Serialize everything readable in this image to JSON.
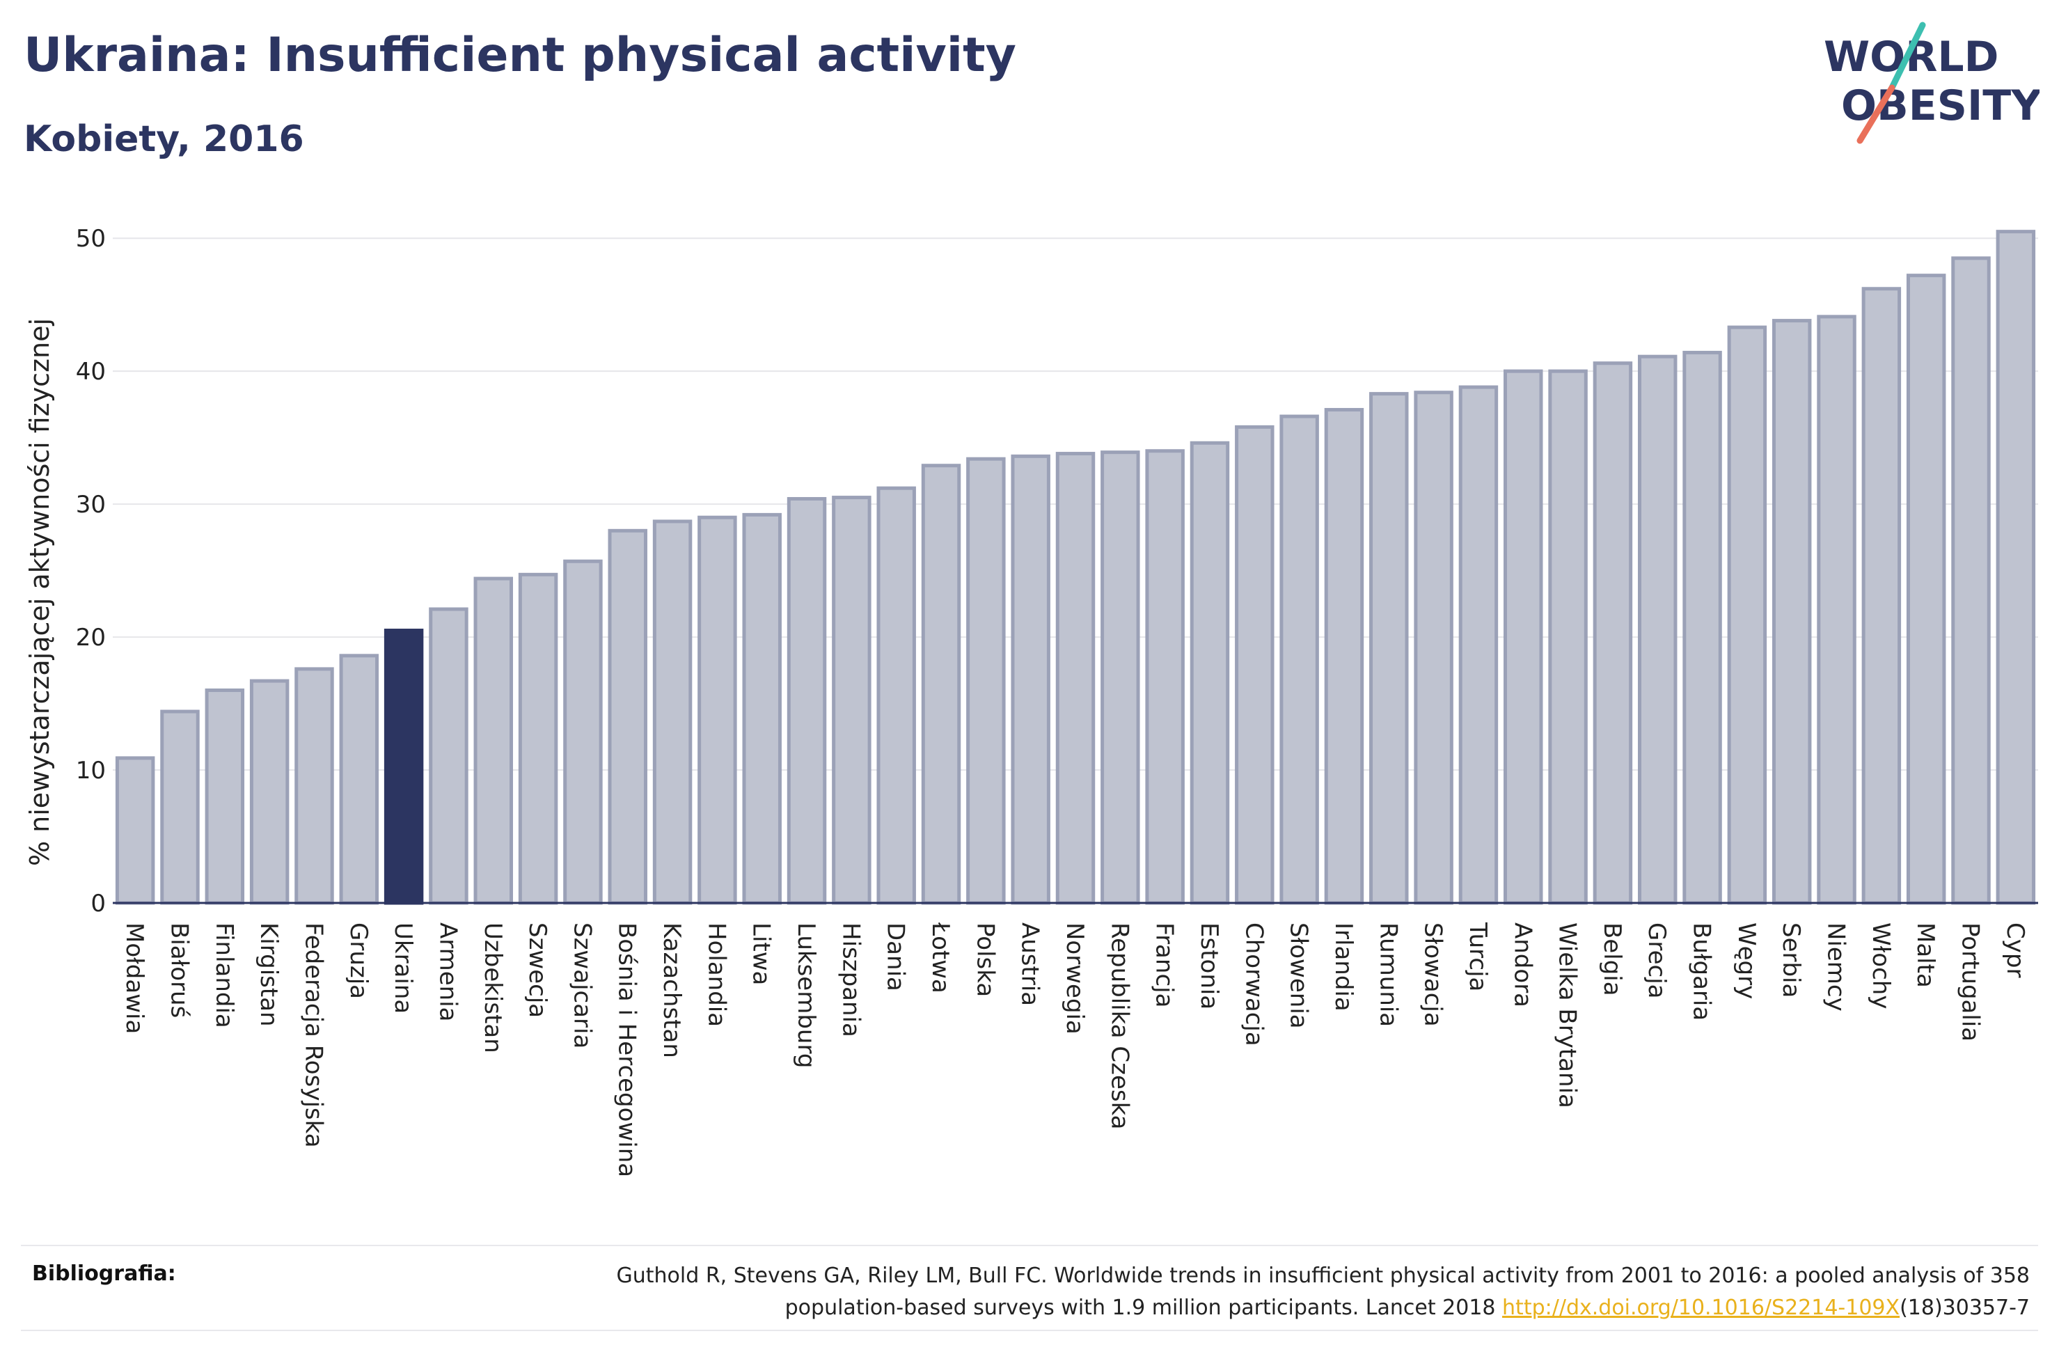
{
  "header": {
    "title": "Ukraina: Insufficient physical activity",
    "subtitle": "Kobiety, 2016",
    "logo_line1": "WORLD",
    "logo_line2": "OBESITY"
  },
  "colors": {
    "bar": "#bfc3d0",
    "bar_stroke": "#9ba1b7",
    "highlight": "#2c3561",
    "text": "#2c3561",
    "grid": "#e6e6ea",
    "link": "#e9b11c",
    "logo_slash_top": "#3dbfb0",
    "logo_slash_bottom": "#e9705a"
  },
  "chart_data": {
    "type": "bar",
    "categories": [
      "Mołdawia",
      "Białoruś",
      "Finlandia",
      "Kirgistan",
      "Federacja Rosyjska",
      "Gruzja",
      "Ukraina",
      "Armenia",
      "Uzbekistan",
      "Szwecja",
      "Szwajcaria",
      "Bośnia i Hercegowina",
      "Kazachstan",
      "Holandia",
      "Litwa",
      "Luksemburg",
      "Hiszpania",
      "Dania",
      "Łotwa",
      "Polska",
      "Austria",
      "Norwegia",
      "Republika Czeska",
      "Francja",
      "Estonia",
      "Chorwacja",
      "Słowenia",
      "Irlandia",
      "Rumunia",
      "Słowacja",
      "Turcja",
      "Andora",
      "Wielka Brytania",
      "Belgia",
      "Grecja",
      "Bułgaria",
      "Węgry",
      "Serbia",
      "Niemcy",
      "Włochy",
      "Malta",
      "Portugalia",
      "Cypr"
    ],
    "values": [
      10.9,
      14.4,
      16.0,
      16.7,
      17.6,
      18.6,
      20.5,
      22.1,
      24.4,
      24.7,
      25.7,
      28.0,
      28.7,
      29.0,
      29.2,
      30.4,
      30.5,
      31.2,
      32.9,
      33.4,
      33.6,
      33.8,
      33.9,
      34.0,
      34.6,
      35.8,
      36.6,
      37.1,
      38.3,
      38.4,
      38.8,
      40.0,
      40.0,
      40.6,
      41.1,
      41.4,
      43.3,
      43.8,
      44.1,
      46.2,
      47.2,
      48.5,
      50.5
    ],
    "highlight": "Ukraina",
    "ylabel": "% niewystarczającej aktywności fizycznej",
    "xlabel": "",
    "ylim": [
      0,
      52
    ],
    "yticks": [
      "0",
      "10",
      "20",
      "30",
      "40",
      "50"
    ],
    "grid": true
  },
  "footer": {
    "label": "Bibliografia:",
    "text_line1": "Guthold R, Stevens GA, Riley LM, Bull FC. Worldwide trends in insufficient physical activity from 2001 to 2016: a pooled analysis of 358",
    "text_line2_pre": "population-based surveys with 1.9 million participants. Lancet 2018 ",
    "link_text": "http://dx.doi.org/10.1016/S2214-109X",
    "text_line2_post": "(18)30357-7"
  }
}
